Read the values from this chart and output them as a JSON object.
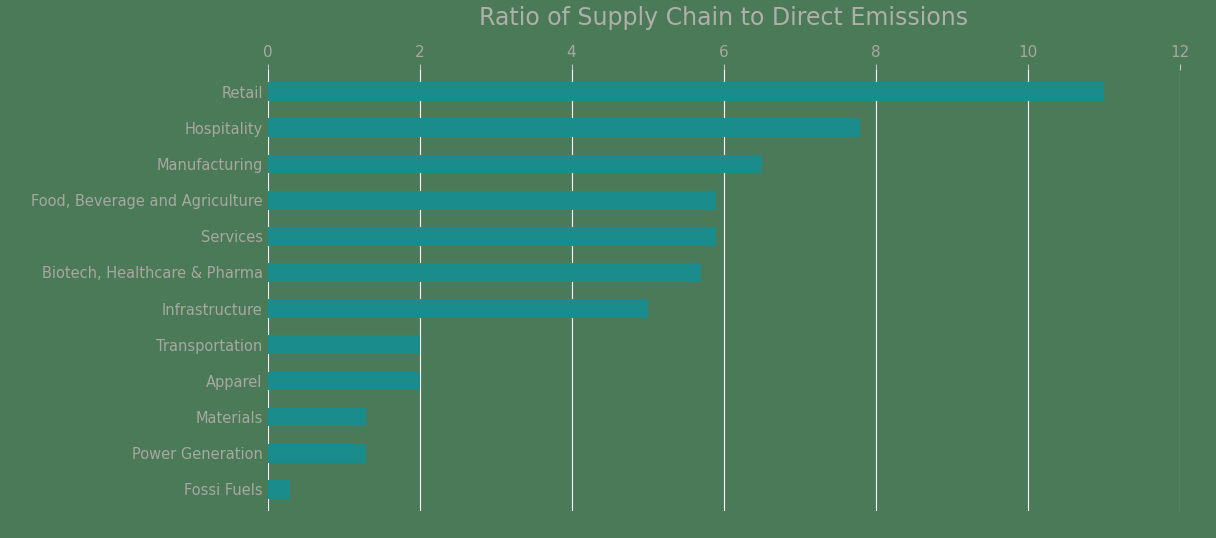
{
  "title": "Ratio of Supply Chain to Direct Emissions",
  "categories": [
    "Fossi Fuels",
    "Power Generation",
    "Materials",
    "Apparel",
    "Transportation",
    "Infrastructure",
    "Biotech, Healthcare & Pharma",
    "Services",
    "Food, Beverage and Agriculture",
    "Manufacturing",
    "Hospitality",
    "Retail"
  ],
  "values": [
    0.3,
    1.3,
    1.3,
    2.0,
    2.0,
    5.0,
    5.7,
    5.9,
    5.9,
    6.5,
    7.8,
    11.0
  ],
  "bar_color": "#1a8c8c",
  "background_color": "#4a7a58",
  "title_color": "#b0b0a8",
  "label_color": "#a8a8a0",
  "tick_color": "#a8a8a0",
  "gridline_color": "#ffffff",
  "yaxis_line_color": "#c8c8c0",
  "xlim": [
    0,
    12
  ],
  "xticks": [
    0,
    2,
    4,
    6,
    8,
    10,
    12
  ],
  "title_fontsize": 17,
  "label_fontsize": 10.5,
  "tick_fontsize": 11,
  "bar_height": 0.52,
  "fig_width": 12.16,
  "fig_height": 5.38,
  "dpi": 100
}
